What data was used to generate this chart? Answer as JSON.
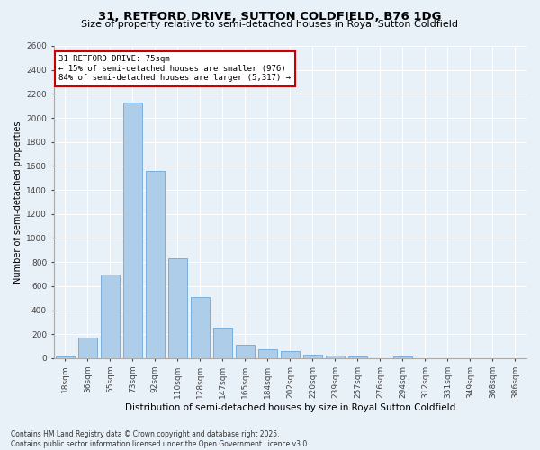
{
  "title": "31, RETFORD DRIVE, SUTTON COLDFIELD, B76 1DG",
  "subtitle": "Size of property relative to semi-detached houses in Royal Sutton Coldfield",
  "xlabel": "Distribution of semi-detached houses by size in Royal Sutton Coldfield",
  "ylabel": "Number of semi-detached properties",
  "categories": [
    "18sqm",
    "36sqm",
    "55sqm",
    "73sqm",
    "92sqm",
    "110sqm",
    "128sqm",
    "147sqm",
    "165sqm",
    "184sqm",
    "202sqm",
    "220sqm",
    "239sqm",
    "257sqm",
    "276sqm",
    "294sqm",
    "312sqm",
    "331sqm",
    "349sqm",
    "368sqm",
    "386sqm"
  ],
  "values": [
    15,
    175,
    700,
    2130,
    1560,
    830,
    510,
    255,
    115,
    75,
    60,
    30,
    20,
    15,
    0,
    15,
    0,
    0,
    0,
    0,
    0
  ],
  "bar_color": "#aecde8",
  "bar_edge_color": "#5b9bd5",
  "highlight_index": 3,
  "annotation_text": "31 RETFORD DRIVE: 75sqm\n← 15% of semi-detached houses are smaller (976)\n84% of semi-detached houses are larger (5,317) →",
  "annotation_box_color": "#ffffff",
  "annotation_box_edge_color": "#cc0000",
  "ylim": [
    0,
    2600
  ],
  "yticks": [
    0,
    200,
    400,
    600,
    800,
    1000,
    1200,
    1400,
    1600,
    1800,
    2000,
    2200,
    2400,
    2600
  ],
  "background_color": "#e8f0f8",
  "plot_background_color": "#e8f0f8",
  "grid_color": "#ffffff",
  "footer": "Contains HM Land Registry data © Crown copyright and database right 2025.\nContains public sector information licensed under the Open Government Licence v3.0.",
  "title_fontsize": 9.5,
  "subtitle_fontsize": 8,
  "xlabel_fontsize": 7.5,
  "ylabel_fontsize": 7,
  "tick_fontsize": 6.5,
  "annotation_fontsize": 6.5,
  "footer_fontsize": 5.5
}
